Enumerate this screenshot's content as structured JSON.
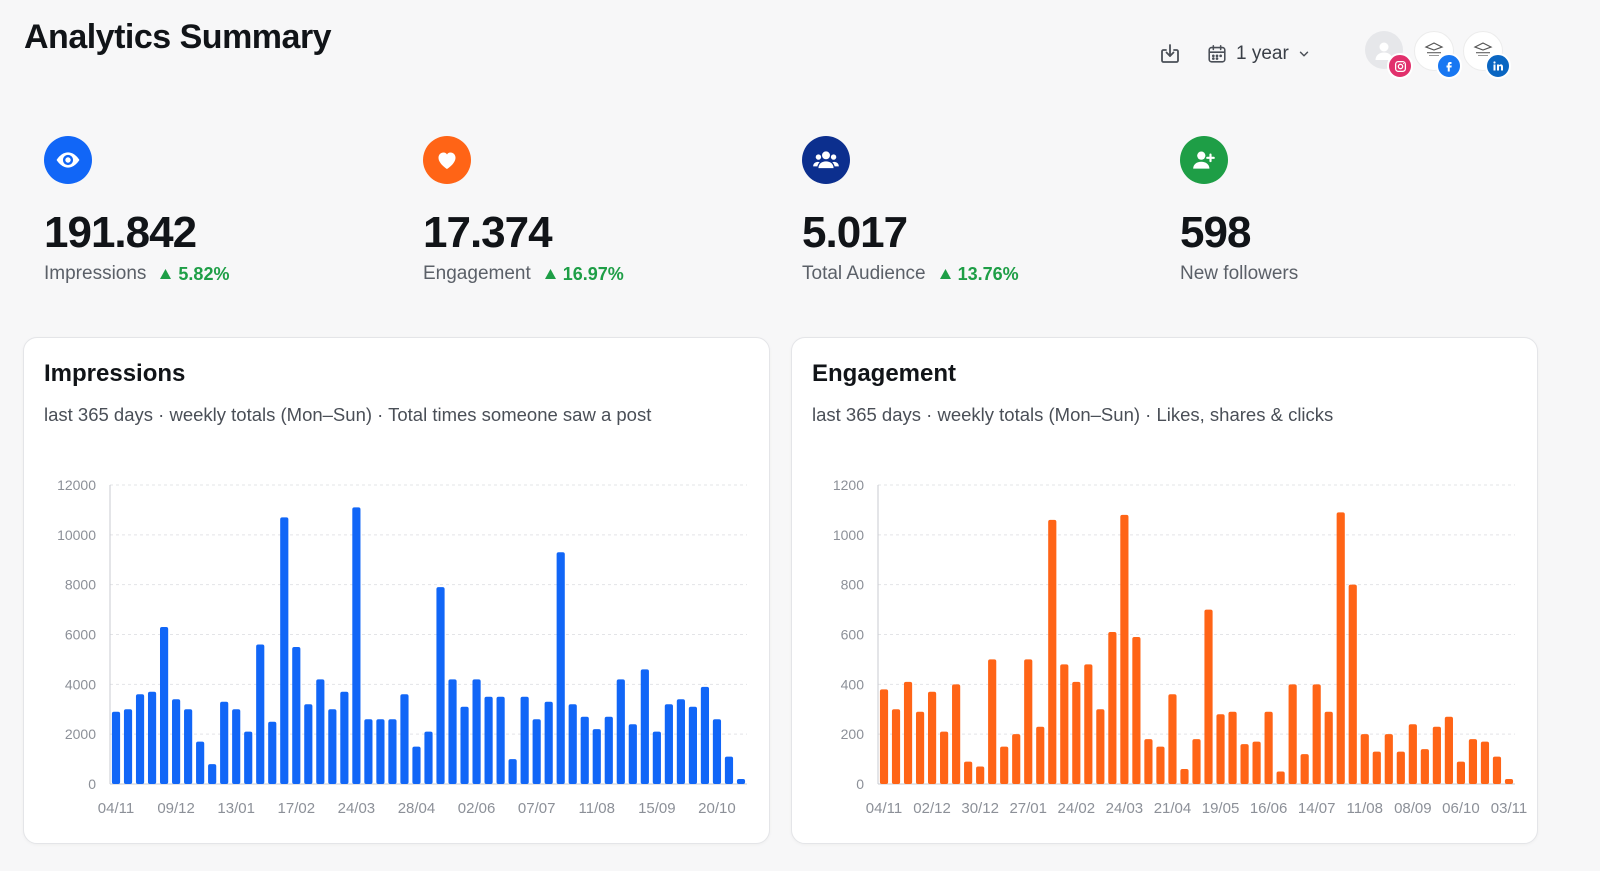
{
  "header": {
    "title": "Analytics Summary",
    "download_icon": "download-icon",
    "range_label": "1 year",
    "accounts": [
      {
        "name": "profile",
        "network": "instagram",
        "badge_color": "#e1306c"
      },
      {
        "name": "brand-page",
        "network": "facebook",
        "badge_color": "#1877f2"
      },
      {
        "name": "brand-company",
        "network": "linkedin",
        "badge_color": "#0a66c2"
      }
    ]
  },
  "kpis": [
    {
      "icon": "eye-icon",
      "color": "#1166f7",
      "value": "191.842",
      "label": "Impressions",
      "delta": "5.82%"
    },
    {
      "icon": "heart-icon",
      "color": "#ff6416",
      "value": "17.374",
      "label": "Engagement",
      "delta": "16.97%"
    },
    {
      "icon": "users-icon",
      "color": "#0c2f8e",
      "value": "5.017",
      "label": "Total Audience",
      "delta": "13.76%"
    },
    {
      "icon": "user-plus-icon",
      "color": "#1e9e46",
      "value": "598",
      "label": "New followers",
      "delta": ""
    }
  ],
  "colors": {
    "positive": "#1e9e46",
    "grid": "#e3e4e7",
    "tick": "#8c9098"
  },
  "chart_data": [
    {
      "type": "bar",
      "title": "Impressions",
      "subtitle": "last 365 days · weekly totals (Mon–Sun) · Total times someone saw a post",
      "color": "#1166f7",
      "ylim": [
        0,
        12000
      ],
      "yticks": [
        0,
        2000,
        4000,
        6000,
        8000,
        10000,
        12000
      ],
      "xticks": [
        "04/11",
        "09/12",
        "13/01",
        "17/02",
        "24/03",
        "28/04",
        "02/06",
        "07/07",
        "11/08",
        "15/09",
        "20/10"
      ],
      "xtick_every": 5,
      "values": [
        2900,
        3000,
        3600,
        3700,
        6300,
        3400,
        3000,
        1700,
        800,
        3300,
        3000,
        2100,
        5600,
        2500,
        10700,
        5500,
        3200,
        4200,
        3000,
        3700,
        11100,
        2600,
        2600,
        2600,
        3600,
        1500,
        2100,
        7900,
        4200,
        3100,
        4200,
        3500,
        3500,
        1000,
        3500,
        2600,
        3300,
        9300,
        3200,
        2700,
        2200,
        2700,
        4200,
        2400,
        4600,
        2100,
        3200,
        3400,
        3100,
        3900,
        2600,
        1100,
        200
      ]
    },
    {
      "type": "bar",
      "title": "Engagement",
      "subtitle": "last 365 days · weekly totals (Mon–Sun) · Likes, shares & clicks",
      "color": "#ff6416",
      "ylim": [
        0,
        1200
      ],
      "yticks": [
        0,
        200,
        400,
        600,
        800,
        1000,
        1200
      ],
      "xticks": [
        "04/11",
        "02/12",
        "30/12",
        "27/01",
        "24/02",
        "24/03",
        "21/04",
        "19/05",
        "16/06",
        "14/07",
        "11/08",
        "08/09",
        "06/10",
        "03/11"
      ],
      "xtick_every": 4,
      "values": [
        380,
        300,
        410,
        290,
        370,
        210,
        400,
        90,
        70,
        500,
        150,
        200,
        500,
        230,
        1060,
        480,
        410,
        480,
        300,
        610,
        1080,
        590,
        180,
        150,
        360,
        60,
        180,
        700,
        280,
        290,
        160,
        170,
        290,
        50,
        400,
        120,
        400,
        290,
        1090,
        800,
        200,
        130,
        200,
        130,
        240,
        140,
        230,
        270,
        90,
        180,
        170,
        110,
        20
      ]
    }
  ]
}
